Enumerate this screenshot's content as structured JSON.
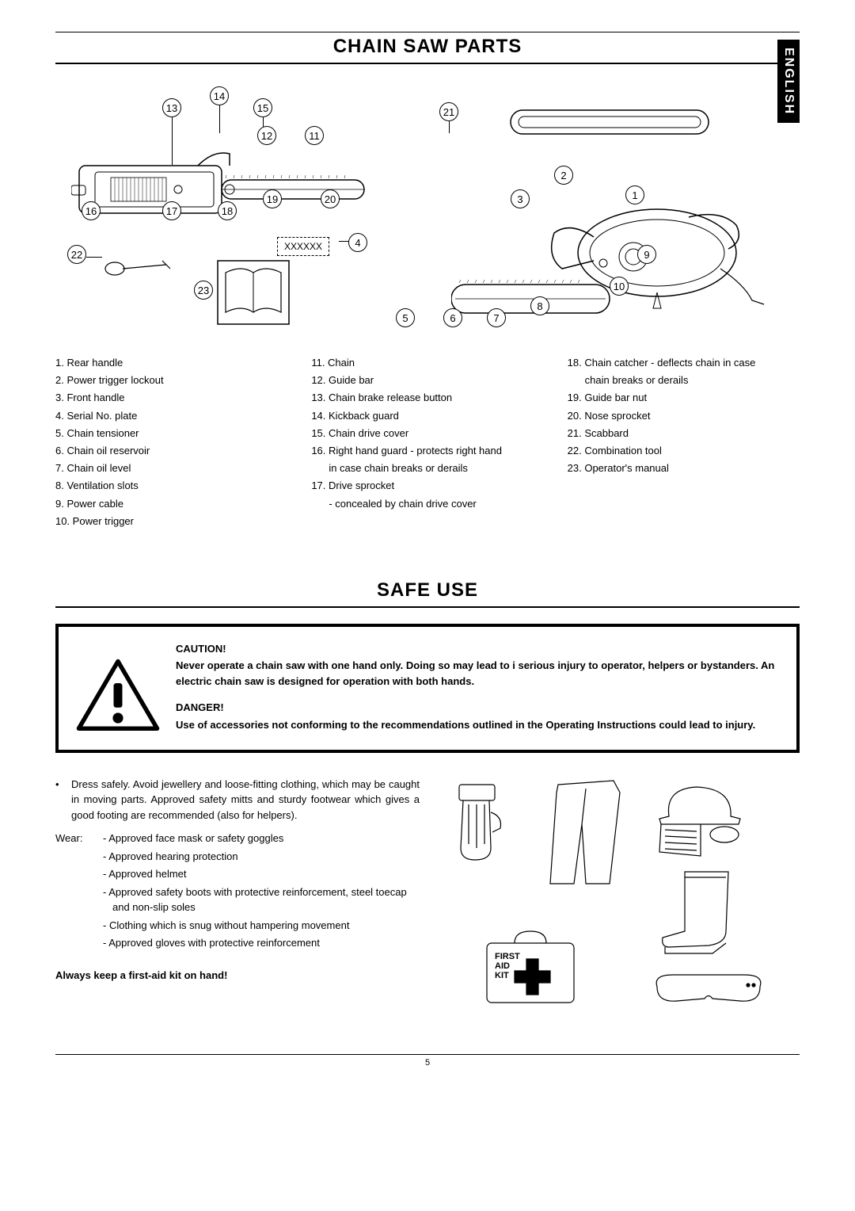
{
  "language_tab": "ENGLISH",
  "sections": {
    "parts_title": "CHAIN SAW PARTS",
    "safe_use_title": "SAFE USE"
  },
  "serial_placeholder": "XXXXXX",
  "callouts": {
    "c1": "1",
    "c2": "2",
    "c3": "3",
    "c4": "4",
    "c5": "5",
    "c6": "6",
    "c7": "7",
    "c8": "8",
    "c9": "9",
    "c10": "10",
    "c11": "11",
    "c12": "12",
    "c13": "13",
    "c14": "14",
    "c15": "15",
    "c16": "16",
    "c17": "17",
    "c18": "18",
    "c19": "19",
    "c20": "20",
    "c21": "21",
    "c22": "22",
    "c23": "23"
  },
  "parts_list": {
    "col1": [
      "1. Rear handle",
      "2. Power trigger lockout",
      "3. Front handle",
      "4. Serial No. plate",
      "5. Chain tensioner",
      "6. Chain oil reservoir",
      "7. Chain oil level",
      "8. Ventilation slots",
      "9. Power cable",
      "10. Power trigger"
    ],
    "col2": [
      "11. Chain",
      "12. Guide bar",
      "13. Chain brake release button",
      "14. Kickback guard",
      "15. Chain drive cover",
      "16. Right hand guard - protects right hand",
      "in case chain breaks or derails",
      "17. Drive sprocket",
      "- concealed by chain drive cover"
    ],
    "col2_indent_idx": [
      6,
      8
    ],
    "col3": [
      "18. Chain catcher - deflects chain in case",
      "chain breaks or derails",
      "19. Guide bar nut",
      "20. Nose sprocket",
      "21. Scabbard",
      "22. Combination tool",
      "23. Operator's manual"
    ],
    "col3_indent_idx": [
      1
    ]
  },
  "caution": {
    "heading1": "CAUTION!",
    "body1": "Never operate a chain saw with one hand only. Doing so may lead to i serious injury to operator, helpers or bystanders. An electric chain saw is designed for operation with both hands.",
    "heading2": "DANGER!",
    "body2": "Use of accessories not conforming to the recommendations outlined in the Operating Instructions could lead to injury."
  },
  "safe_use": {
    "bullet1": "Dress safely. Avoid jewellery and loose-fitting clothing, which may be caught in moving parts. Approved safety mitts and sturdy footwear which gives a good footing are recommended (also for helpers).",
    "wear_label": "Wear:",
    "wear_items": [
      "- Approved face mask or safety goggles",
      "- Approved hearing protection",
      "- Approved helmet",
      "- Approved safety boots with protective reinforcement, steel toecap and non-slip soles",
      "- Clothing which is snug without hampering movement",
      "- Approved gloves with protective reinforcement"
    ],
    "first_aid": "Always keep a first-aid kit on hand!",
    "first_aid_label": "FIRST\nAID\nKIT"
  },
  "page_number": "5",
  "colors": {
    "black": "#000000",
    "white": "#ffffff"
  }
}
